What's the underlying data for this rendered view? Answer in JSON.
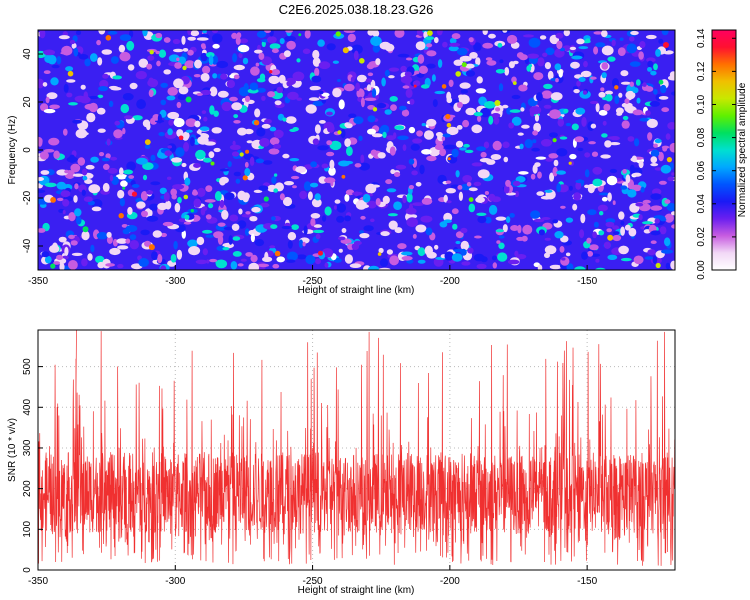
{
  "title": "C2E6.2025.038.18.23.G26",
  "chart_data": [
    {
      "type": "heatmap",
      "xlabel": "Height of straight line (km)",
      "ylabel": "Frequency (Hz)",
      "xlim": [
        -350,
        -118
      ],
      "ylim": [
        -50,
        50
      ],
      "xticks": [
        -350,
        -300,
        -250,
        -200,
        -150
      ],
      "yticks": [
        -40,
        -20,
        0,
        20,
        40
      ],
      "colorbar": {
        "label": "Normalized spectral amplitude",
        "range": [
          0,
          0.145
        ],
        "ticks": [
          "0.00",
          "0.02",
          "0.04",
          "0.06",
          "0.08",
          "0.10",
          "0.12",
          "0.14"
        ],
        "colormap": [
          "#ffffff",
          "#f2d8f6",
          "#c75ce0",
          "#6a1ff0",
          "#1a1af5",
          "#0055ff",
          "#00a8ff",
          "#00e0d0",
          "#00e060",
          "#60f000",
          "#c8e800",
          "#f0c000",
          "#ff7000",
          "#ff1030",
          "#ff0060"
        ]
      },
      "values_description_note": "",
      "value_range": [
        0,
        0.14
      ]
    },
    {
      "type": "line",
      "xlabel": "Height of straight line (km)",
      "ylabel": "SNR (10 * v/v)",
      "xlim": [
        -350,
        -118
      ],
      "ylim": [
        0,
        590
      ],
      "xticks": [
        -350,
        -300,
        -250,
        -200,
        -150
      ],
      "yticks": [
        0,
        100,
        200,
        300,
        400,
        500
      ],
      "series": [
        {
          "color": "#f03030",
          "mean": 180,
          "core_min": 90,
          "core_max": 290,
          "peak": 590,
          "min": 10
        }
      ]
    }
  ]
}
